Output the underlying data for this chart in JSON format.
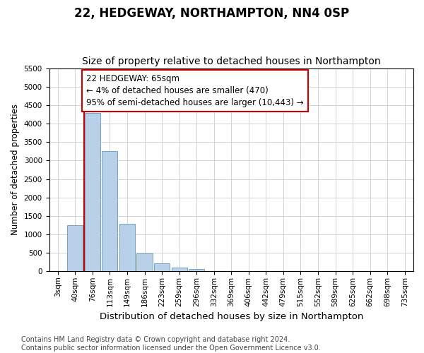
{
  "title": "22, HEDGEWAY, NORTHAMPTON, NN4 0SP",
  "subtitle": "Size of property relative to detached houses in Northampton",
  "xlabel": "Distribution of detached houses by size in Northampton",
  "ylabel": "Number of detached properties",
  "categories": [
    "3sqm",
    "40sqm",
    "76sqm",
    "113sqm",
    "149sqm",
    "186sqm",
    "223sqm",
    "259sqm",
    "296sqm",
    "332sqm",
    "369sqm",
    "406sqm",
    "442sqm",
    "479sqm",
    "515sqm",
    "552sqm",
    "589sqm",
    "625sqm",
    "662sqm",
    "698sqm",
    "735sqm"
  ],
  "values": [
    0,
    1250,
    4300,
    3250,
    1280,
    480,
    200,
    90,
    60,
    0,
    0,
    0,
    0,
    0,
    0,
    0,
    0,
    0,
    0,
    0,
    0
  ],
  "bar_color": "#b8d0e8",
  "bar_edge_color": "#6699bb",
  "vline_x_index": 1.5,
  "vline_color": "#cc0000",
  "annotation_text": "22 HEDGEWAY: 65sqm\n← 4% of detached houses are smaller (470)\n95% of semi-detached houses are larger (10,443) →",
  "annotation_box_color": "#ffffff",
  "annotation_box_edge_color": "#cc0000",
  "ylim": [
    0,
    5500
  ],
  "yticks": [
    0,
    500,
    1000,
    1500,
    2000,
    2500,
    3000,
    3500,
    4000,
    4500,
    5000,
    5500
  ],
  "footer_text": "Contains HM Land Registry data © Crown copyright and database right 2024.\nContains public sector information licensed under the Open Government Licence v3.0.",
  "title_fontsize": 12,
  "subtitle_fontsize": 10,
  "xlabel_fontsize": 9.5,
  "ylabel_fontsize": 8.5,
  "tick_fontsize": 7.5,
  "annotation_fontsize": 8.5,
  "footer_fontsize": 7,
  "background_color": "#ffffff",
  "grid_color": "#cccccc"
}
